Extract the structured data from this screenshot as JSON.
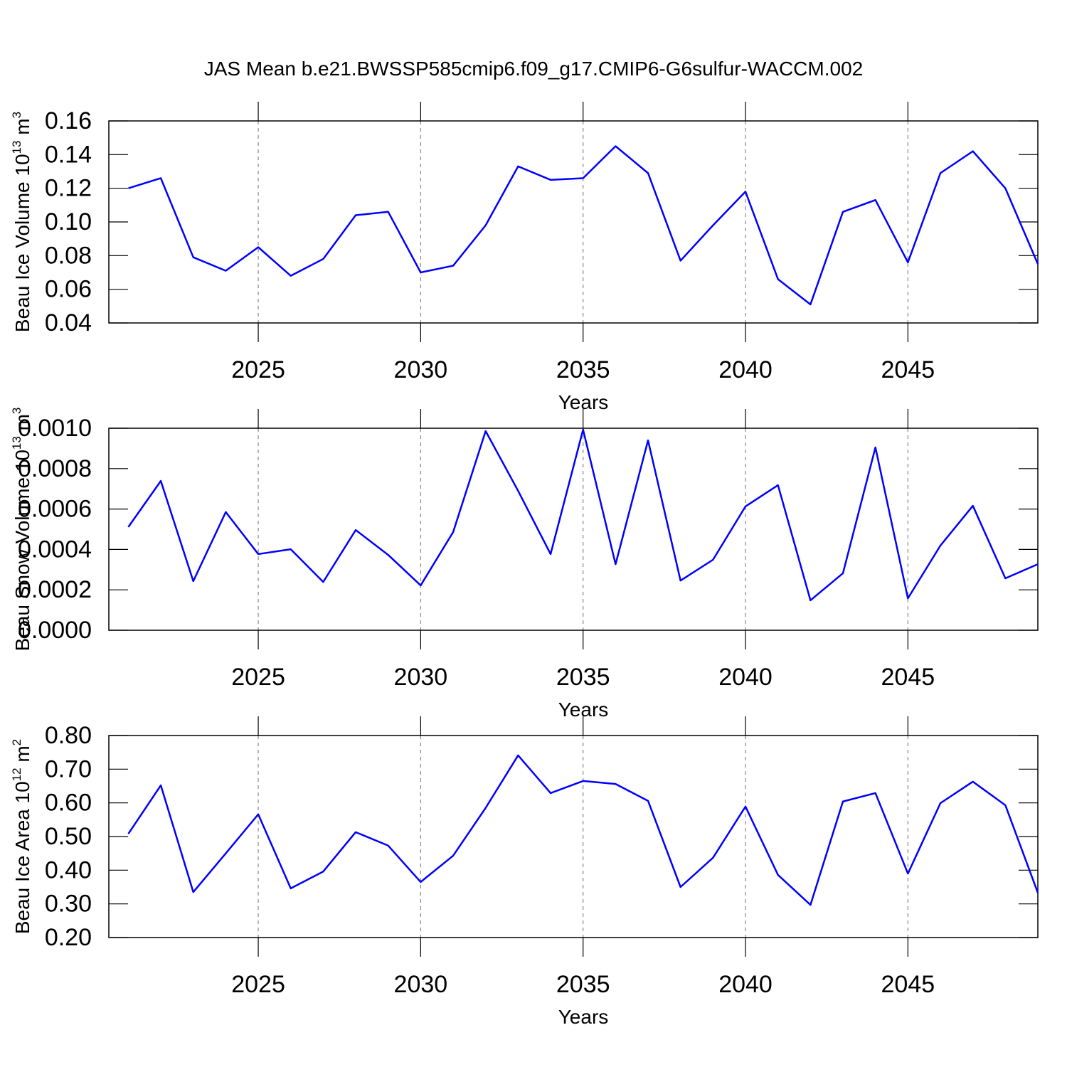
{
  "chart_data": [
    {
      "type": "line",
      "title": "JAS Mean b.e21.BWSSP585cmip6.f09_g17.CMIP6-G6sulfur-WACCM.002",
      "xlabel": "Years",
      "ylabel": [
        "Beau Ice Volume 10",
        "13",
        " m",
        "3"
      ],
      "x": [
        2021,
        2022,
        2023,
        2024,
        2025,
        2026,
        2027,
        2028,
        2029,
        2030,
        2031,
        2032,
        2033,
        2034,
        2035,
        2036,
        2037,
        2038,
        2039,
        2040,
        2041,
        2042,
        2043,
        2044,
        2045,
        2046,
        2047,
        2048,
        2049
      ],
      "values": [
        0.12,
        0.126,
        0.079,
        0.071,
        0.085,
        0.068,
        0.078,
        0.104,
        0.106,
        0.07,
        0.074,
        0.098,
        0.133,
        0.125,
        0.126,
        0.145,
        0.129,
        0.077,
        0.098,
        0.118,
        0.066,
        0.051,
        0.106,
        0.113,
        0.076,
        0.129,
        0.142,
        0.12,
        0.075
      ],
      "color": "#0000ff",
      "grid": "x",
      "xlim": [
        2020.4,
        2049
      ],
      "xticks": [
        2025,
        2030,
        2035,
        2040,
        2045
      ],
      "ylim": [
        0.04,
        0.16
      ],
      "yticks": [
        0.04,
        0.06,
        0.08,
        {
          "value": 0.1,
          "label": "0.10"
        },
        0.12,
        0.14,
        0.16
      ]
    },
    {
      "type": "line",
      "xlabel": "Years",
      "ylabel": [
        "Beau Snow Volume 10",
        "13",
        " m",
        "3"
      ],
      "x": [
        2021,
        2022,
        2023,
        2024,
        2025,
        2026,
        2027,
        2028,
        2029,
        2030,
        2031,
        2032,
        2033,
        2034,
        2035,
        2036,
        2037,
        2038,
        2039,
        2040,
        2041,
        2042,
        2043,
        2044,
        2045,
        2046,
        2047,
        2048,
        2049
      ],
      "values": [
        0.000511,
        0.000739,
        0.000243,
        0.000585,
        0.000377,
        0.000401,
        0.000239,
        0.000496,
        0.000373,
        0.000222,
        0.000486,
        0.000986,
        0.00069,
        0.000377,
        0.000993,
        0.000327,
        0.00094,
        0.000246,
        0.000349,
        0.000613,
        0.000718,
        0.000148,
        0.000282,
        0.000905,
        0.000158,
        0.000419,
        0.000616,
        0.000257,
        0.000327
      ],
      "color": "#0000ff",
      "grid": "x",
      "xlim": [
        2020.4,
        2049
      ],
      "xticks": [
        2025,
        2030,
        2035,
        2040,
        2045
      ],
      "ylim": [
        0,
        0.001
      ],
      "yticks": [
        {
          "value": 0,
          "label": "0.0000"
        },
        {
          "value": 0.0002,
          "label": "0.0002"
        },
        {
          "value": 0.0004,
          "label": "0.0004"
        },
        {
          "value": 0.0006,
          "label": "0.0006"
        },
        {
          "value": 0.0008,
          "label": "0.0008"
        },
        {
          "value": 0.001,
          "label": "0.0010"
        }
      ]
    },
    {
      "type": "line",
      "xlabel": "Years",
      "ylabel": [
        "Beau Ice Area 10",
        "12",
        " m",
        "2"
      ],
      "x": [
        2021,
        2022,
        2023,
        2024,
        2025,
        2026,
        2027,
        2028,
        2029,
        2030,
        2031,
        2032,
        2033,
        2034,
        2035,
        2036,
        2037,
        2038,
        2039,
        2040,
        2041,
        2042,
        2043,
        2044,
        2045,
        2046,
        2047,
        2048,
        2049
      ],
      "values": [
        0.508,
        0.652,
        0.335,
        0.45,
        0.566,
        0.346,
        0.396,
        0.513,
        0.473,
        0.365,
        0.443,
        0.585,
        0.741,
        0.629,
        0.665,
        0.656,
        0.606,
        0.35,
        0.437,
        0.589,
        0.386,
        0.297,
        0.604,
        0.629,
        0.39,
        0.599,
        0.663,
        0.593,
        0.333
      ],
      "color": "#0000ff",
      "grid": "x",
      "xlim": [
        2020.4,
        2049
      ],
      "xticks": [
        2025,
        2030,
        2035,
        2040,
        2045
      ],
      "ylim": [
        0.2,
        0.8
      ],
      "yticks": [
        {
          "value": 0.2,
          "label": "0.20"
        },
        {
          "value": 0.3,
          "label": "0.30"
        },
        {
          "value": 0.4,
          "label": "0.40"
        },
        {
          "value": 0.5,
          "label": "0.50"
        },
        {
          "value": 0.6,
          "label": "0.60"
        },
        {
          "value": 0.7,
          "label": "0.70"
        },
        {
          "value": 0.8,
          "label": "0.80"
        }
      ]
    }
  ]
}
